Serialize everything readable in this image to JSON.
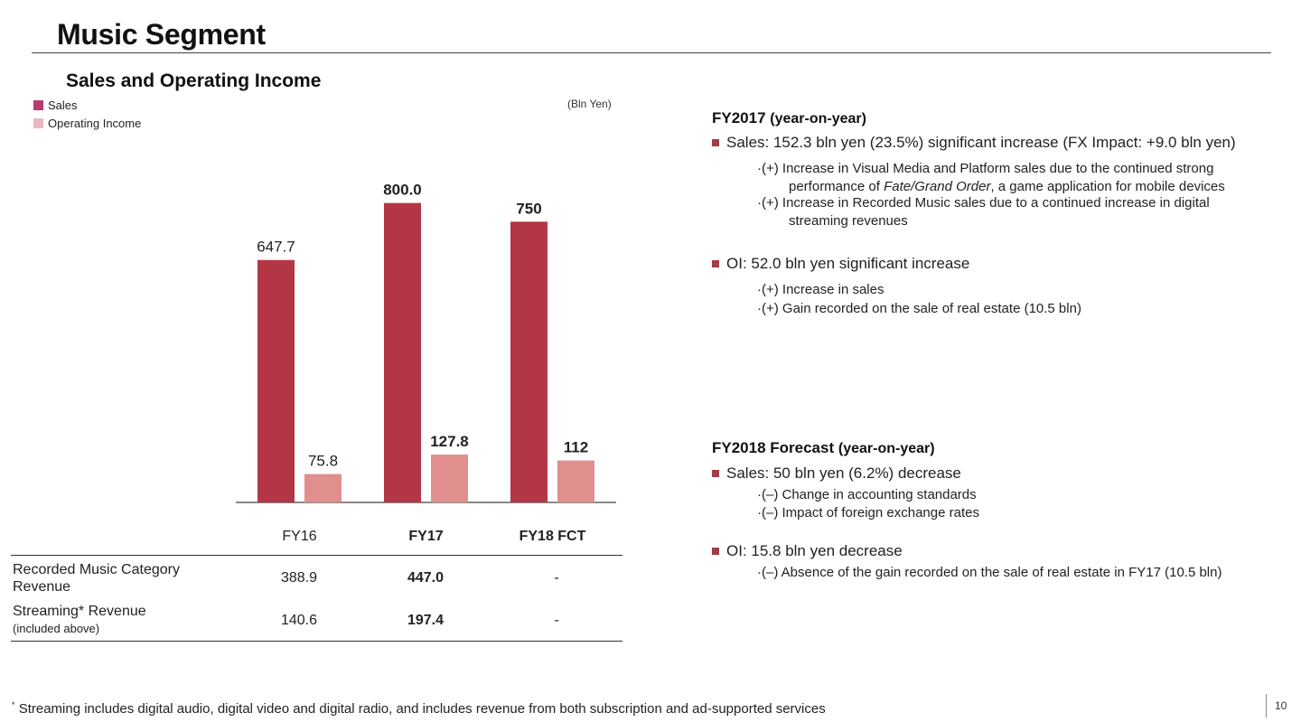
{
  "page": {
    "title": "Music Segment",
    "number": "10"
  },
  "chart": {
    "title": "Sales and Operating Income",
    "unit": "(Bln Yen)",
    "legend": [
      {
        "label": "Sales",
        "color": "#b83a6f"
      },
      {
        "label": "Operating Income",
        "color": "#e9b9c6"
      }
    ]
  },
  "chart_data": {
    "type": "bar",
    "categories": [
      "FY16",
      "FY17",
      "FY18 FCT"
    ],
    "series": [
      {
        "name": "Sales",
        "values": [
          647.7,
          800.0,
          750
        ],
        "labels": [
          "647.7",
          "800.0",
          "750"
        ],
        "color": "#b23645"
      },
      {
        "name": "Operating Income",
        "values": [
          75.8,
          127.8,
          112
        ],
        "labels": [
          "75.8",
          "127.8",
          "112"
        ],
        "color": "#e18e8e"
      }
    ],
    "bold_categories": [
      false,
      true,
      true
    ],
    "title": "Sales and Operating Income",
    "ylabel": "(Bln Yen)",
    "ylim": [
      0,
      900
    ],
    "grid": false,
    "legend": "top-left"
  },
  "table": {
    "rows": [
      {
        "label": "Recorded Music Category Revenue",
        "sub": "",
        "values": [
          "388.9",
          "447.0",
          "-"
        ]
      },
      {
        "label": "Streaming* Revenue",
        "sub": "(included above)",
        "values": [
          "140.6",
          "197.4",
          "-"
        ]
      }
    ]
  },
  "fy2017": {
    "heading": "FY2017",
    "heading_paren": "(year-on-year)",
    "sales_bullet": "Sales: 152.3 bln yen (23.5%) significant increase (FX Impact: +9.0 bln yen)",
    "sales_points": [
      {
        "line1": "·(+) Increase in Visual Media and Platform sales due to the continued strong",
        "line2_pre": "performance of ",
        "line2_em": "Fate/Grand Order",
        "line2_post": ", a game application for mobile devices"
      },
      {
        "line1": "·(+) Increase in Recorded Music sales due to a continued increase in digital",
        "line2": "streaming revenues"
      }
    ],
    "oi_bullet": "OI: 52.0 bln yen significant increase",
    "oi_points": [
      "·(+) Increase in sales",
      "·(+) Gain recorded on the sale of real estate (10.5 bln)"
    ]
  },
  "fy2018": {
    "heading": "FY2018 Forecast",
    "heading_paren": "(year-on-year)",
    "sales_bullet": "Sales: 50 bln yen (6.2%) decrease",
    "sales_points": [
      "·(–) Change in accounting standards",
      "·(–) Impact of foreign exchange rates"
    ],
    "oi_bullet": "OI: 15.8 bln yen decrease",
    "oi_points": [
      "·(–) Absence of the gain recorded on the sale of real estate in FY17 (10.5 bln)"
    ]
  },
  "footnote": {
    "marker": "*",
    "text": "Streaming includes digital audio, digital video and digital radio, and includes revenue from both subscription and ad-supported services"
  }
}
